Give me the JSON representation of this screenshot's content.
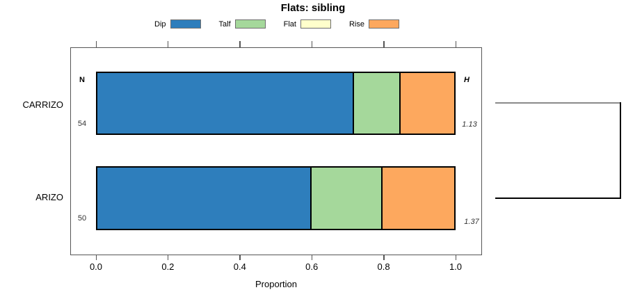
{
  "title": "Flats: sibling",
  "legend": [
    {
      "label": "Dip",
      "color": "#2e7ebc"
    },
    {
      "label": "Talf",
      "color": "#a5d89b"
    },
    {
      "label": "Flat",
      "color": "#ffffcc"
    },
    {
      "label": "Rise",
      "color": "#fda85e"
    }
  ],
  "axis": {
    "label": "Proportion",
    "ticks": [
      "0.0",
      "0.2",
      "0.4",
      "0.6",
      "0.8",
      "1.0"
    ]
  },
  "annotations": {
    "n_header": "N",
    "h_header": "H"
  },
  "rows": [
    {
      "label": "CARRIZO",
      "n": "54",
      "h": "1.13"
    },
    {
      "label": "ARIZO",
      "n": "50",
      "h": "1.37"
    }
  ],
  "colors": {
    "bar_border": "#000000",
    "box_border": "#555555",
    "bracket_top": "#8a8a8a",
    "bracket_main": "#000000"
  },
  "chart_data": {
    "type": "bar",
    "stacked": true,
    "orientation": "horizontal",
    "title": "Flats: sibling",
    "xlabel": "Proportion",
    "xlim": [
      0,
      1
    ],
    "x_ticks": [
      0.0,
      0.2,
      0.4,
      0.6,
      0.8,
      1.0
    ],
    "grid": false,
    "legend_position": "top",
    "categories": [
      "CARRIZO",
      "ARIZO"
    ],
    "sample_sizes": [
      54,
      50
    ],
    "H_values": [
      1.13,
      1.37
    ],
    "series": [
      {
        "name": "Dip",
        "color": "#2e7ebc",
        "values": [
          0.72,
          0.6
        ]
      },
      {
        "name": "Talf",
        "color": "#a5d89b",
        "values": [
          0.13,
          0.2
        ]
      },
      {
        "name": "Flat",
        "color": "#ffffcc",
        "values": [
          0.0,
          0.0
        ]
      },
      {
        "name": "Rise",
        "color": "#fda85e",
        "values": [
          0.15,
          0.2
        ]
      }
    ]
  }
}
